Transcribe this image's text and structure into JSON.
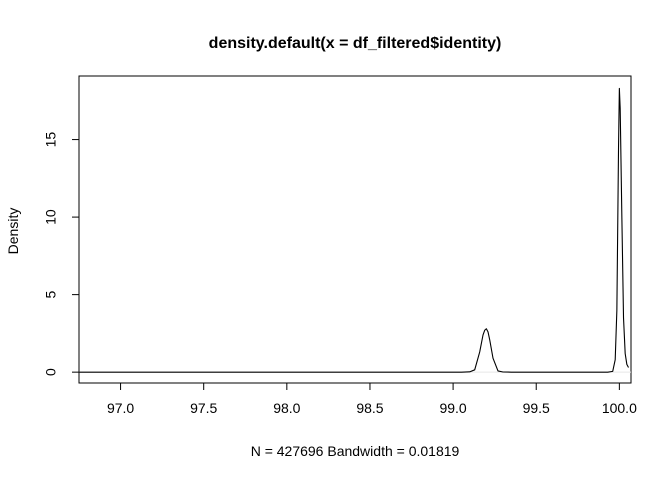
{
  "chart_data": {
    "type": "line",
    "title": "density.default(x = df_filtered$identity)",
    "xlabel": "N = 427696   Bandwidth = 0.01819",
    "ylabel": "Density",
    "xlim": [
      96.75,
      100.07
    ],
    "ylim": [
      -0.7,
      19.1
    ],
    "x_ticks": [
      97.0,
      97.5,
      98.0,
      98.5,
      99.0,
      99.5,
      100.0
    ],
    "x_tick_labels": [
      "97.0",
      "97.5",
      "98.0",
      "98.5",
      "99.0",
      "99.5",
      "100.0"
    ],
    "y_ticks": [
      0,
      5,
      10,
      15
    ],
    "y_tick_labels": [
      "0",
      "5",
      "10",
      "15"
    ],
    "grid": false,
    "legend": "none",
    "zero_line": 0,
    "series": [
      {
        "x": [
          96.75,
          99.05,
          99.1,
          99.13,
          99.16,
          99.18,
          99.19,
          99.2,
          99.21,
          99.22,
          99.24,
          99.27,
          99.3,
          99.35,
          99.93,
          99.96,
          99.975,
          99.985,
          99.995,
          100.0,
          100.005,
          100.015,
          100.025,
          100.035,
          100.045,
          100.055
        ],
        "y": [
          0.0,
          0.0,
          0.02,
          0.15,
          1.3,
          2.4,
          2.7,
          2.8,
          2.6,
          2.1,
          0.9,
          0.08,
          0.01,
          0.0,
          0.0,
          0.05,
          0.8,
          4.0,
          14.5,
          18.3,
          17.0,
          10.0,
          3.5,
          1.2,
          0.5,
          0.3
        ]
      }
    ]
  }
}
